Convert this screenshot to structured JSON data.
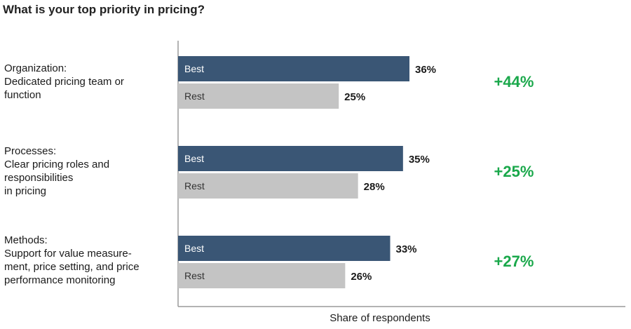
{
  "title": "What is your top priority in pricing?",
  "colors": {
    "best": "#3a5675",
    "rest": "#c4c4c4",
    "diff": "#1aa84b",
    "axis": "#9a9a9a"
  },
  "chart_data": {
    "type": "bar",
    "orientation": "horizontal",
    "title": "What is your top priority in pricing?",
    "xlabel": "Share of respondents",
    "ylabel": "",
    "xlim": [
      0,
      100
    ],
    "grid": false,
    "categories": [
      [
        "Organization:",
        "Dedicated pricing team or",
        "function"
      ],
      [
        "Processes:",
        "Clear pricing roles and",
        "responsibilities",
        "in pricing"
      ],
      [
        "Methods:",
        "Support for value measure-",
        "ment, price setting, and price",
        "performance monitoring"
      ]
    ],
    "series": [
      {
        "name": "Best",
        "values": [
          36,
          35,
          33
        ],
        "labels": [
          "36%",
          "35%",
          "33%"
        ]
      },
      {
        "name": "Rest",
        "values": [
          25,
          28,
          26
        ],
        "labels": [
          "25%",
          "28%",
          "26%"
        ]
      }
    ],
    "annotations": [
      "+44%",
      "+25%",
      "+27%"
    ]
  }
}
